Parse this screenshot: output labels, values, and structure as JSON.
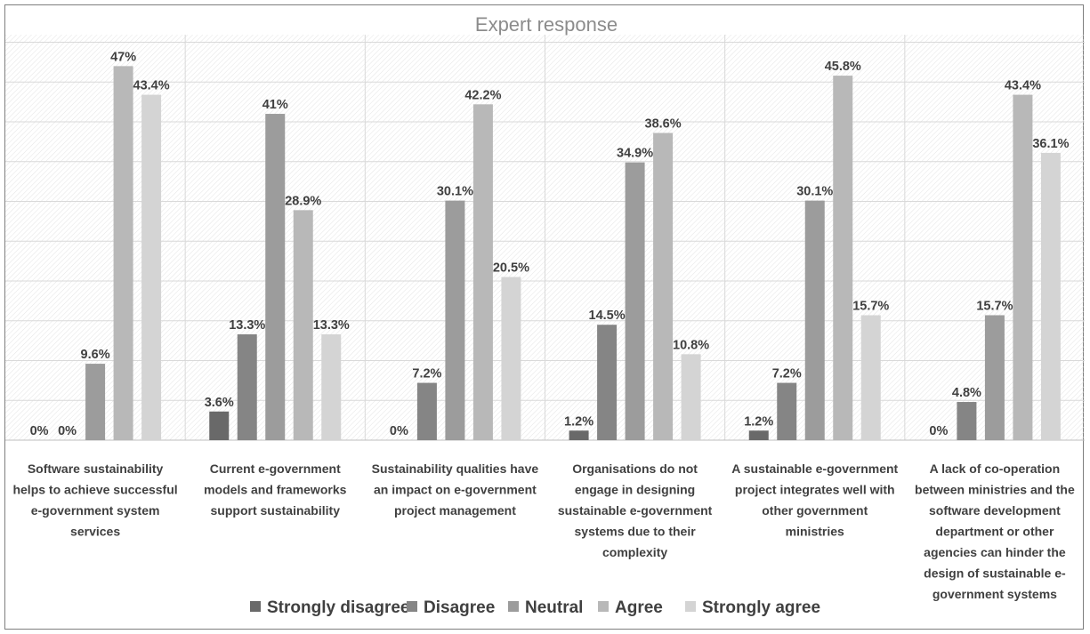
{
  "chart_data": {
    "type": "bar",
    "title": "Expert response",
    "categories": [
      [
        "Software sustainability",
        "helps to achieve successful",
        "e-government system",
        "services"
      ],
      [
        "Current e-government",
        "models and frameworks",
        "support sustainability"
      ],
      [
        "Sustainability qualities have",
        "an impact on e-government",
        "project management"
      ],
      [
        "Organisations do not",
        "engage in designing",
        "sustainable e-government",
        "systems due to their",
        "complexity"
      ],
      [
        "A sustainable e-government",
        "project integrates well with",
        "other government",
        "ministries"
      ],
      [
        "A lack of co-operation",
        "between ministries and the",
        "software development",
        "department or other",
        "agencies can hinder the",
        "design of  sustainable e-",
        "government systems"
      ]
    ],
    "series": [
      {
        "name": "Strongly disagree",
        "color": "#696969",
        "values": [
          0,
          3.6,
          0,
          1.2,
          1.2,
          0
        ],
        "labels": [
          "0%",
          "3.6%",
          "0%",
          "1.2%",
          "1.2%",
          "0%"
        ]
      },
      {
        "name": "Disagree",
        "color": "#858585",
        "values": [
          0,
          13.3,
          7.2,
          14.5,
          7.2,
          4.8
        ],
        "labels": [
          "0%",
          "13.3%",
          "7.2%",
          "14.5%",
          "7.2%",
          "4.8%"
        ]
      },
      {
        "name": "Neutral",
        "color": "#9c9c9c",
        "values": [
          9.6,
          41,
          30.1,
          34.9,
          30.1,
          15.7
        ],
        "labels": [
          "9.6%",
          "41%",
          "30.1%",
          "34.9%",
          "30.1%",
          "15.7%"
        ]
      },
      {
        "name": "Agree",
        "color": "#b8b8b8",
        "values": [
          47,
          28.9,
          42.2,
          38.6,
          45.8,
          43.4
        ],
        "labels": [
          "47%",
          "28.9%",
          "42.2%",
          "38.6%",
          "45.8%",
          "43.4%"
        ]
      },
      {
        "name": "Strongly agree",
        "color": "#d4d4d4",
        "values": [
          43.4,
          13.3,
          20.5,
          10.8,
          15.7,
          36.1
        ],
        "labels": [
          "43.4%",
          "13.3%",
          "20.5%",
          "10.8%",
          "15.7%",
          "36.1%"
        ]
      }
    ],
    "ylim": [
      0,
      50
    ],
    "grid": true,
    "legend_position": "bottom"
  }
}
